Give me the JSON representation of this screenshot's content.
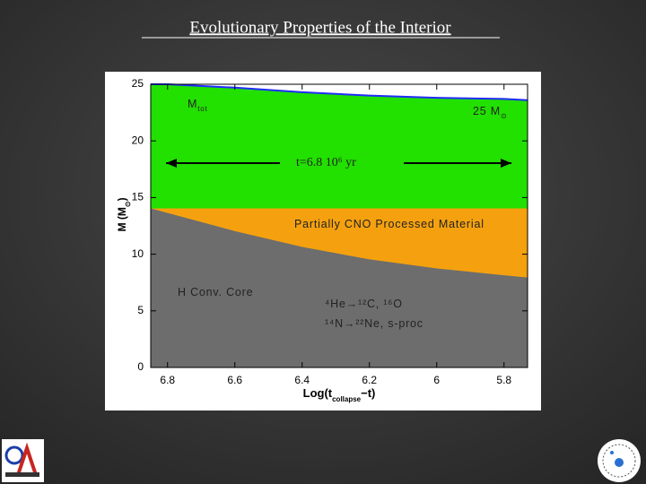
{
  "title": "Evolutionary Properties of the Interior",
  "chart_data": {
    "type": "area",
    "x": [
      6.85,
      6.8,
      6.6,
      6.4,
      6.2,
      6.0,
      5.8,
      5.73
    ],
    "series": [
      {
        "color": "#1f2cff",
        "fill": "#22e000",
        "values": [
          25,
          25,
          24.7,
          24.3,
          24.0,
          23.8,
          23.7,
          23.6
        ]
      },
      {
        "color": "#f5a10f",
        "fill": "#f5a10f",
        "values": [
          14,
          14,
          14,
          14,
          14,
          14,
          14,
          14
        ]
      },
      {
        "color": "#6d6d6d",
        "fill": "#6d6d6d",
        "values": [
          14.0,
          13.6,
          12.0,
          10.6,
          9.5,
          8.7,
          8.1,
          7.9
        ]
      }
    ],
    "xlim": [
      6.85,
      5.73
    ],
    "ylim": [
      0,
      25
    ],
    "xticks": [
      6.8,
      6.6,
      6.4,
      6.2,
      6,
      5.8
    ],
    "yticks": [
      0,
      5,
      10,
      15,
      20,
      25
    ],
    "xlabel": [
      "Log(t",
      "collapse",
      "−t)"
    ],
    "ylabel": [
      "M (M",
      "⊙",
      ")"
    ],
    "annotations": [
      [
        "M",
        "tot"
      ],
      [
        "25 M",
        "⊙"
      ],
      [
        "t=6.8 10⁶ yr"
      ],
      [
        "Partially CNO Processed Material"
      ],
      [
        "H Conv. Core"
      ],
      [
        "⁴He→¹²C, ¹⁶O"
      ],
      [
        "¹⁴N→²²Ne, s-proc"
      ]
    ]
  }
}
